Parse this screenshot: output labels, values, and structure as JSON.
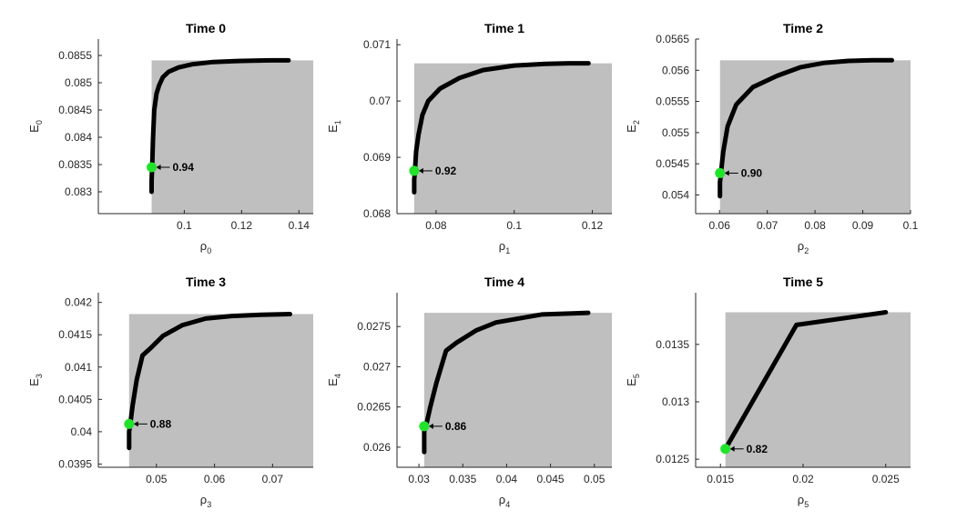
{
  "colors": {
    "region": "#bfbfbf",
    "curve": "#000000",
    "marker": "#22e32b",
    "axis": "#262626"
  },
  "chart_data": [
    {
      "type": "line",
      "title": "Time 0",
      "xlabel": "ρ",
      "xsub": "0",
      "ylabel": "E",
      "ysub": "0",
      "xlim": [
        0.07,
        0.145
      ],
      "ylim": [
        0.0826,
        0.0858
      ],
      "xticks": [
        0.1,
        0.12,
        0.14
      ],
      "xtick_labels": [
        "0.1",
        "0.12",
        "0.14"
      ],
      "yticks": [
        0.083,
        0.0835,
        0.084,
        0.0845,
        0.085,
        0.0855
      ],
      "ytick_labels": [
        "0.083",
        "0.0835",
        "0.084",
        "0.0845",
        "0.085",
        "0.0855"
      ],
      "x": [
        0.0886,
        0.0886,
        0.0888,
        0.0891,
        0.0895,
        0.0903,
        0.0912,
        0.0925,
        0.0945,
        0.098,
        0.103,
        0.11,
        0.12,
        0.13,
        0.1364
      ],
      "y": [
        0.083,
        0.0832,
        0.0835,
        0.084,
        0.0845,
        0.0848,
        0.08495,
        0.0851,
        0.0852,
        0.08528,
        0.08534,
        0.08538,
        0.0854,
        0.08541,
        0.08541
      ],
      "region_x_max": 0.145,
      "region_y_max": 0.08541,
      "marker": {
        "x": 0.0886,
        "y": 0.08345,
        "label": "0.94"
      }
    },
    {
      "type": "line",
      "title": "Time 1",
      "xlabel": "ρ",
      "xsub": "1",
      "ylabel": "E",
      "ysub": "1",
      "xlim": [
        0.07,
        0.125
      ],
      "ylim": [
        0.068,
        0.0711
      ],
      "xticks": [
        0.08,
        0.1,
        0.12
      ],
      "xtick_labels": [
        "0.08",
        "0.1",
        "0.12"
      ],
      "yticks": [
        0.068,
        0.069,
        0.07,
        0.071
      ],
      "ytick_labels": [
        "0.068",
        "0.069",
        "0.07",
        "0.071"
      ],
      "x": [
        0.0744,
        0.0744,
        0.0746,
        0.0749,
        0.0755,
        0.0765,
        0.078,
        0.081,
        0.086,
        0.092,
        0.1,
        0.108,
        0.114,
        0.119
      ],
      "y": [
        0.06838,
        0.0686,
        0.06876,
        0.0691,
        0.0694,
        0.06975,
        0.07,
        0.07022,
        0.07041,
        0.07055,
        0.07063,
        0.07066,
        0.07067,
        0.07067
      ],
      "region_x_max": 0.125,
      "region_y_max": 0.07067,
      "marker": {
        "x": 0.0744,
        "y": 0.06876,
        "label": "0.92"
      }
    },
    {
      "type": "line",
      "title": "Time 2",
      "xlabel": "ρ",
      "xsub": "2",
      "ylabel": "E",
      "ysub": "2",
      "xlim": [
        0.055,
        0.1
      ],
      "ylim": [
        0.0537,
        0.0565
      ],
      "xticks": [
        0.06,
        0.07,
        0.08,
        0.09,
        0.1
      ],
      "xtick_labels": [
        "0.06",
        "0.07",
        "0.08",
        "0.09",
        "0.1"
      ],
      "yticks": [
        0.054,
        0.0545,
        0.055,
        0.0555,
        0.056,
        0.0565
      ],
      "ytick_labels": [
        "0.054",
        "0.0545",
        "0.055",
        "0.0555",
        "0.056",
        "0.0565"
      ],
      "x": [
        0.0601,
        0.0601,
        0.0603,
        0.0608,
        0.0617,
        0.0635,
        0.067,
        0.072,
        0.077,
        0.082,
        0.087,
        0.092,
        0.0961
      ],
      "y": [
        0.05398,
        0.0542,
        0.05435,
        0.0547,
        0.0551,
        0.05545,
        0.05573,
        0.05591,
        0.05605,
        0.05612,
        0.05615,
        0.05616,
        0.05616
      ],
      "region_x_max": 0.1,
      "region_y_max": 0.05616,
      "marker": {
        "x": 0.0601,
        "y": 0.05435,
        "label": "0.90"
      }
    },
    {
      "type": "line",
      "title": "Time 3",
      "xlabel": "ρ",
      "xsub": "3",
      "ylabel": "E",
      "ysub": "3",
      "xlim": [
        0.04,
        0.077
      ],
      "ylim": [
        0.03945,
        0.04215
      ],
      "xticks": [
        0.05,
        0.06,
        0.07
      ],
      "xtick_labels": [
        "0.05",
        "0.06",
        "0.07"
      ],
      "yticks": [
        0.0395,
        0.04,
        0.0405,
        0.041,
        0.0415,
        0.042
      ],
      "ytick_labels": [
        "0.0395",
        "0.04",
        "0.0405",
        "0.041",
        "0.0415",
        "0.042"
      ],
      "x": [
        0.0453,
        0.0453,
        0.0455,
        0.0459,
        0.0466,
        0.0476,
        0.0491,
        0.0511,
        0.0545,
        0.0585,
        0.063,
        0.068,
        0.073
      ],
      "y": [
        0.03975,
        0.04,
        0.04012,
        0.0404,
        0.0408,
        0.04118,
        0.0413,
        0.04148,
        0.04165,
        0.04175,
        0.04179,
        0.04181,
        0.04182
      ],
      "region_x_max": 0.077,
      "region_y_max": 0.04182,
      "marker": {
        "x": 0.0453,
        "y": 0.04012,
        "label": "0.88"
      }
    },
    {
      "type": "line",
      "title": "Time 4",
      "xlabel": "ρ",
      "xsub": "4",
      "ylabel": "E",
      "ysub": "4",
      "xlim": [
        0.0275,
        0.052
      ],
      "ylim": [
        0.02575,
        0.02792
      ],
      "xticks": [
        0.03,
        0.035,
        0.04,
        0.045,
        0.05
      ],
      "xtick_labels": [
        "0.03",
        "0.035",
        "0.04",
        "0.045",
        "0.05"
      ],
      "yticks": [
        0.026,
        0.0265,
        0.027,
        0.0275
      ],
      "ytick_labels": [
        "0.026",
        "0.0265",
        "0.027",
        "0.0275"
      ],
      "x": [
        0.0306,
        0.0306,
        0.0308,
        0.0313,
        0.032,
        0.0331,
        0.0343,
        0.0365,
        0.0388,
        0.044,
        0.0493
      ],
      "y": [
        0.02594,
        0.0262,
        0.02626,
        0.0265,
        0.0268,
        0.0272,
        0.0273,
        0.02745,
        0.02755,
        0.02765,
        0.02767
      ],
      "region_x_max": 0.052,
      "region_y_max": 0.02767,
      "marker": {
        "x": 0.0306,
        "y": 0.02626,
        "label": "0.86"
      }
    },
    {
      "type": "line",
      "title": "Time 5",
      "xlabel": "ρ",
      "xsub": "5",
      "ylabel": "E",
      "ysub": "5",
      "xlim": [
        0.0135,
        0.0265
      ],
      "ylim": [
        0.01243,
        0.01395
      ],
      "xticks": [
        0.015,
        0.02,
        0.025
      ],
      "xtick_labels": [
        "0.015",
        "0.02",
        "0.025"
      ],
      "yticks": [
        0.0125,
        0.013,
        0.0135
      ],
      "ytick_labels": [
        "0.0125",
        "0.013",
        "0.0135"
      ],
      "x": [
        0.0153,
        0.0196,
        0.025
      ],
      "y": [
        0.01259,
        0.01367,
        0.01378
      ],
      "region_x_max": 0.0265,
      "region_y_max": 0.01378,
      "marker": {
        "x": 0.0153,
        "y": 0.01259,
        "label": "0.82"
      }
    }
  ]
}
